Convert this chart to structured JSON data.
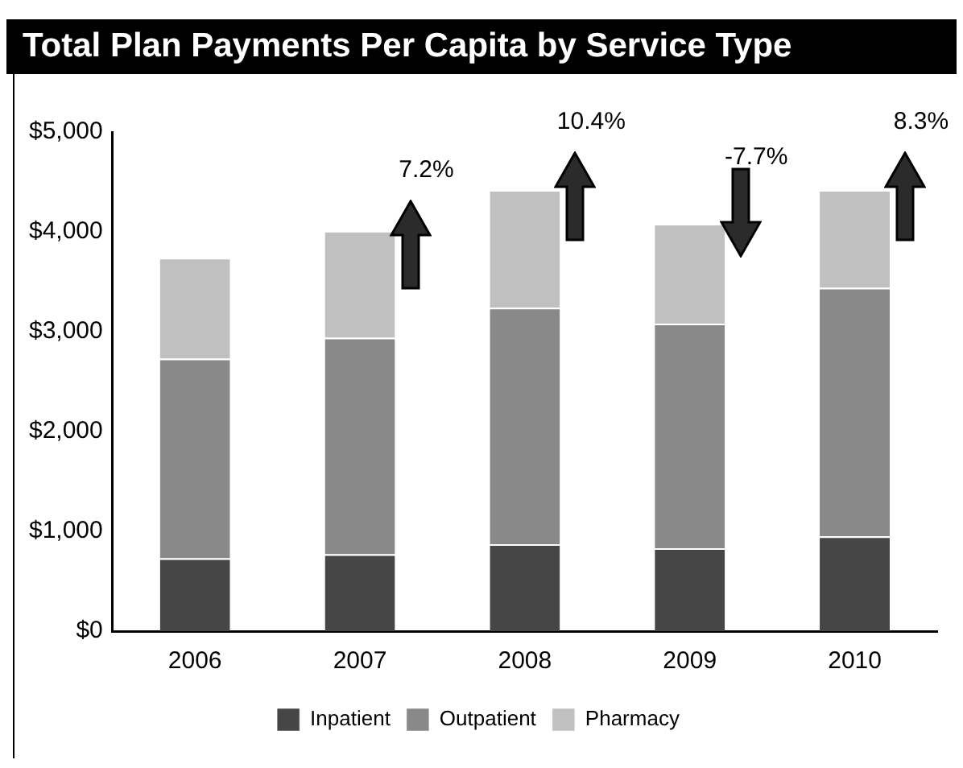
{
  "chart_data": {
    "type": "bar",
    "title": "Total Plan Payments Per Capita by Service Type",
    "categories": [
      "2006",
      "2007",
      "2008",
      "2009",
      "2010"
    ],
    "stacked": true,
    "series": [
      {
        "name": "Inpatient",
        "color": "#464646",
        "values": [
          730,
          770,
          870,
          830,
          950
        ]
      },
      {
        "name": "Outpatient",
        "color": "#898989",
        "values": [
          2000,
          2170,
          2370,
          2250,
          2490
        ]
      },
      {
        "name": "Pharmacy",
        "color": "#c0c0c0",
        "values": [
          1010,
          1070,
          1180,
          1000,
          980
        ]
      }
    ],
    "ylim": [
      0,
      5000
    ],
    "yticks": [
      {
        "value": 0,
        "label": "$0"
      },
      {
        "value": 1000,
        "label": "$1,000"
      },
      {
        "value": 2000,
        "label": "$2,000"
      },
      {
        "value": 3000,
        "label": "$3,000"
      },
      {
        "value": 4000,
        "label": "$4,000"
      },
      {
        "value": 5000,
        "label": "$5,000"
      }
    ],
    "grid": false,
    "legend": "bottom",
    "annotations": [
      "7.2%",
      "10.4%",
      "-7.7%",
      "8.3%"
    ]
  }
}
